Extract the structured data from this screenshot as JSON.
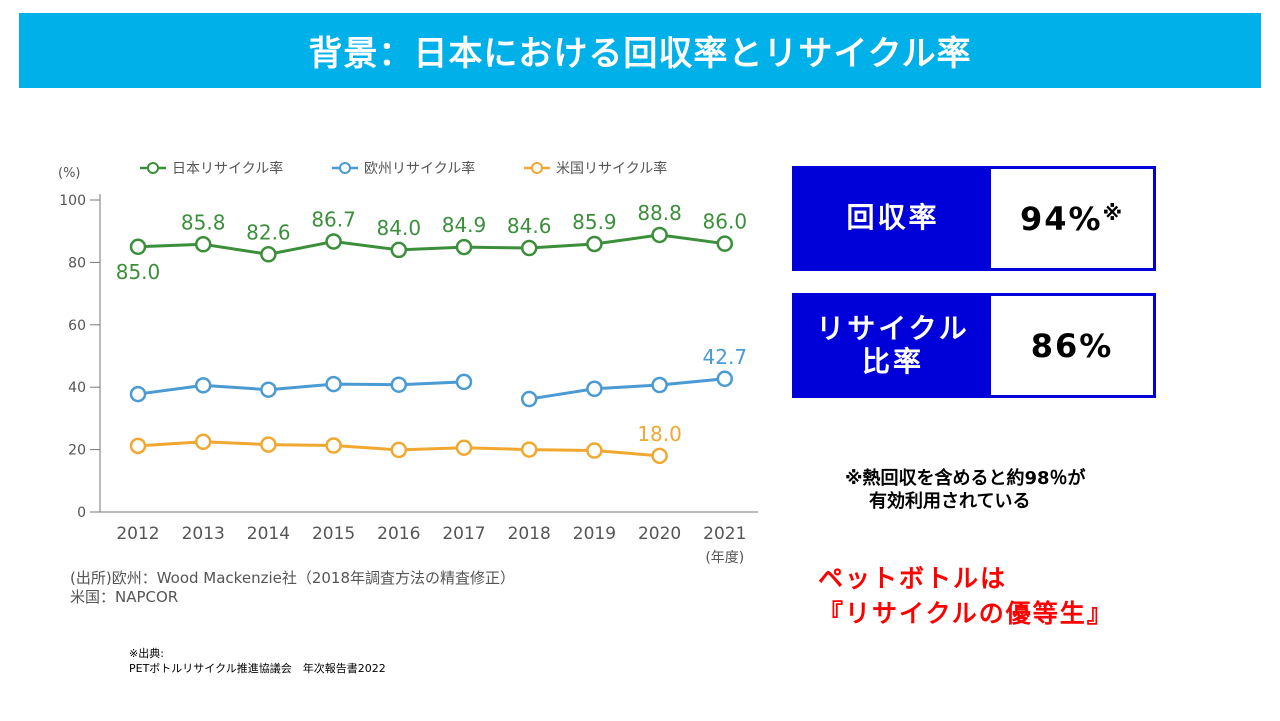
{
  "header": {
    "title": "背景：日本における回収率とリサイクル率"
  },
  "chart_data": {
    "type": "line",
    "ylabel": "(%)",
    "xlabel": "(年度)",
    "ylim": [
      0,
      100
    ],
    "yticks": [
      0,
      20,
      40,
      60,
      80,
      100
    ],
    "categories": [
      "2012",
      "2013",
      "2014",
      "2015",
      "2016",
      "2017",
      "2018",
      "2019",
      "2020",
      "2021"
    ],
    "legend_position": "top",
    "series": [
      {
        "name": "日本リサイクル率",
        "color": "#3b8f3b",
        "values": [
          85.0,
          85.8,
          82.6,
          86.7,
          84.0,
          84.9,
          84.6,
          85.9,
          88.8,
          86.0
        ],
        "labels": [
          "85.0",
          "85.8",
          "82.6",
          "86.7",
          "84.0",
          "84.9",
          "84.6",
          "85.9",
          "88.8",
          "86.0"
        ]
      },
      {
        "name": "欧州リサイクル率",
        "color": "#4a9ad4",
        "values": [
          37.8,
          40.6,
          39.2,
          41.0,
          40.8,
          41.7,
          36.2,
          39.5,
          40.7,
          42.7
        ],
        "gap_after_index": 5,
        "labels": [
          "",
          "",
          "",
          "",
          "",
          "",
          "",
          "",
          "",
          "42.7"
        ]
      },
      {
        "name": "米国リサイクル率",
        "color": "#f0a830",
        "values": [
          21.2,
          22.5,
          21.6,
          21.3,
          19.9,
          20.6,
          20.0,
          19.7,
          18.0,
          null
        ],
        "labels": [
          "",
          "",
          "",
          "",
          "",
          "",
          "",
          "",
          "18.0",
          ""
        ]
      }
    ],
    "source_lines": [
      "(出所)欧州：Wood Mackenzie社（2018年調査方法の精査修正）",
      "米国：NAPCOR"
    ]
  },
  "boxes": {
    "collection": {
      "label": "回収率",
      "value": "94%",
      "mark": "※"
    },
    "recycling": {
      "label_line1": "リサイクル",
      "label_line2": "比率",
      "value": "86%"
    }
  },
  "note": {
    "line1": "※熱回収を含めると約98％が",
    "line2": "有効利用されている"
  },
  "slogan": {
    "line1": "ペットボトルは",
    "line2": "『リサイクルの優等生』"
  },
  "source": {
    "line1": "※出典:",
    "line2": "PETボトルリサイクル推進協議会　年次報告書2022"
  }
}
